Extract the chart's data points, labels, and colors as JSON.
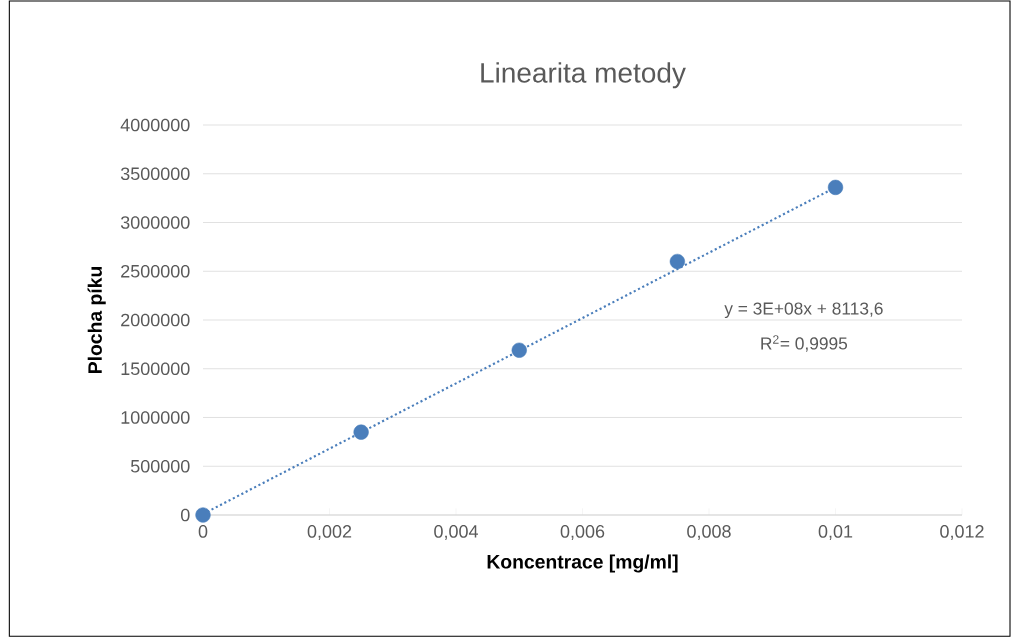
{
  "chart_data": {
    "type": "scatter",
    "title": "Linearita metody",
    "xlabel": "Koncentrace [mg/ml]",
    "ylabel": "Plocha píku",
    "series": [
      {
        "color": "#4a7ebb",
        "marker": "circle",
        "x": [
          0,
          0.0025,
          0.005,
          0.0075,
          0.01
        ],
        "values": [
          0,
          850000,
          1690000,
          2600000,
          3360000
        ]
      },
      {
        "type": "line",
        "color": "#4a7ebb",
        "line_style": "dotted",
        "marker": "none",
        "x": [
          0,
          0.01
        ],
        "values": [
          10000,
          3360000
        ]
      }
    ],
    "xlim": [
      0,
      0.012
    ],
    "ylim": [
      0,
      4000000
    ],
    "xticks": [
      0,
      {
        "value": 0.002,
        "label": "0,002"
      },
      {
        "value": 0.004,
        "label": "0,004"
      },
      {
        "value": 0.006,
        "label": "0,006"
      },
      {
        "value": 0.008,
        "label": "0,008"
      },
      {
        "value": 0.01,
        "label": "0,01"
      },
      {
        "value": 0.012,
        "label": "0,012"
      }
    ],
    "yticks": [
      0,
      500000,
      1000000,
      1500000,
      2000000,
      2500000,
      3000000,
      3500000,
      4000000
    ],
    "grid": "y",
    "annotations": [
      "y = 3E+08x + 8113,6",
      "R$^{2}$= 0,9995"
    ]
  }
}
